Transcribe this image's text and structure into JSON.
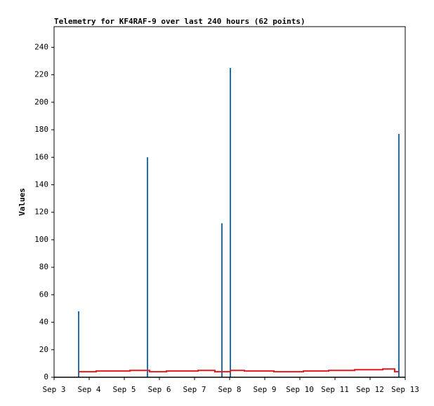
{
  "chart_data": {
    "type": "line",
    "title": "Telemetry for KF4RAF-9 over last 240 hours (62 points)",
    "y_label": "Values",
    "xlim": [
      3,
      13
    ],
    "xticks": [
      {
        "value": 3,
        "label": "Sep 3"
      },
      {
        "value": 4,
        "label": "Sep 4"
      },
      {
        "value": 5,
        "label": "Sep 5"
      },
      {
        "value": 6,
        "label": "Sep 6"
      },
      {
        "value": 7,
        "label": "Sep 7"
      },
      {
        "value": 8,
        "label": "Sep 8"
      },
      {
        "value": 9,
        "label": "Sep 9"
      },
      {
        "value": 10,
        "label": "Sep 10"
      },
      {
        "value": 11,
        "label": "Sep 11"
      },
      {
        "value": 12,
        "label": "Sep 12"
      },
      {
        "value": 13,
        "label": "Sep 13"
      }
    ],
    "ylim": [
      0,
      255
    ],
    "yticks": [
      0,
      20,
      40,
      60,
      80,
      100,
      120,
      140,
      160,
      180,
      200,
      220,
      240
    ],
    "series": [
      {
        "style": "impulse",
        "color": "#1f6fb4",
        "x": [
          3.7,
          5.66,
          7.78,
          8.02,
          12.82
        ],
        "values": [
          48,
          160,
          112,
          225,
          177
        ]
      },
      {
        "style": "step",
        "color": "#e31a1c",
        "x": [
          3.7,
          4.2,
          5.16,
          5.72,
          6.2,
          7.1,
          7.58,
          8.02,
          8.42,
          9.26,
          10.1,
          10.82,
          11.56,
          12.36,
          12.7,
          12.82
        ],
        "values": [
          4,
          4.5,
          5,
          4,
          4.5,
          5,
          4,
          5,
          4.5,
          4,
          4.5,
          5,
          5.5,
          6,
          4,
          4
        ]
      }
    ]
  }
}
